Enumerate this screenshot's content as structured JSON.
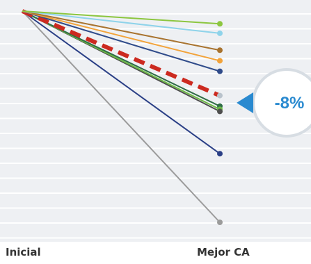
{
  "chart_data": {
    "type": "line",
    "categories": [
      "Inicial",
      "Mejor CA"
    ],
    "callout_label": "-8%",
    "colors": {
      "background": "#eef0f3",
      "grid": "#ffffff",
      "callout_fill": "#ffffff",
      "callout_text": "#2a8ad0",
      "callout_pointer": "#2a8ad0"
    },
    "y_min": -55,
    "y_max": 0,
    "series": [
      {
        "values": [
          0,
          -1.2
        ],
        "color": "#8cc63f",
        "dashed": false
      },
      {
        "values": [
          0,
          -2.1
        ],
        "color": "#8ed3ea",
        "dashed": false
      },
      {
        "values": [
          0,
          -3.7
        ],
        "color": "#a8732f",
        "dashed": false
      },
      {
        "values": [
          0,
          -4.7
        ],
        "color": "#f2a33a",
        "dashed": false
      },
      {
        "values": [
          0,
          -5.7
        ],
        "color": "#2f4b8a",
        "dashed": false
      },
      {
        "values": [
          0,
          -8.0
        ],
        "color": "#cc2a20",
        "dashed": true
      },
      {
        "values": [
          0,
          -9.0
        ],
        "color": "#2f6d46",
        "dashed": false
      },
      {
        "values": [
          0,
          -9.3
        ],
        "color": "#6dbb45",
        "dashed": false
      },
      {
        "values": [
          0,
          -9.5
        ],
        "color": "#4f4f4f",
        "dashed": false
      },
      {
        "values": [
          0,
          -13.5
        ],
        "color": "#2a3f86",
        "dashed": false
      },
      {
        "values": [
          0,
          -20.0
        ],
        "color": "#9b9b9b",
        "dashed": false
      }
    ]
  }
}
